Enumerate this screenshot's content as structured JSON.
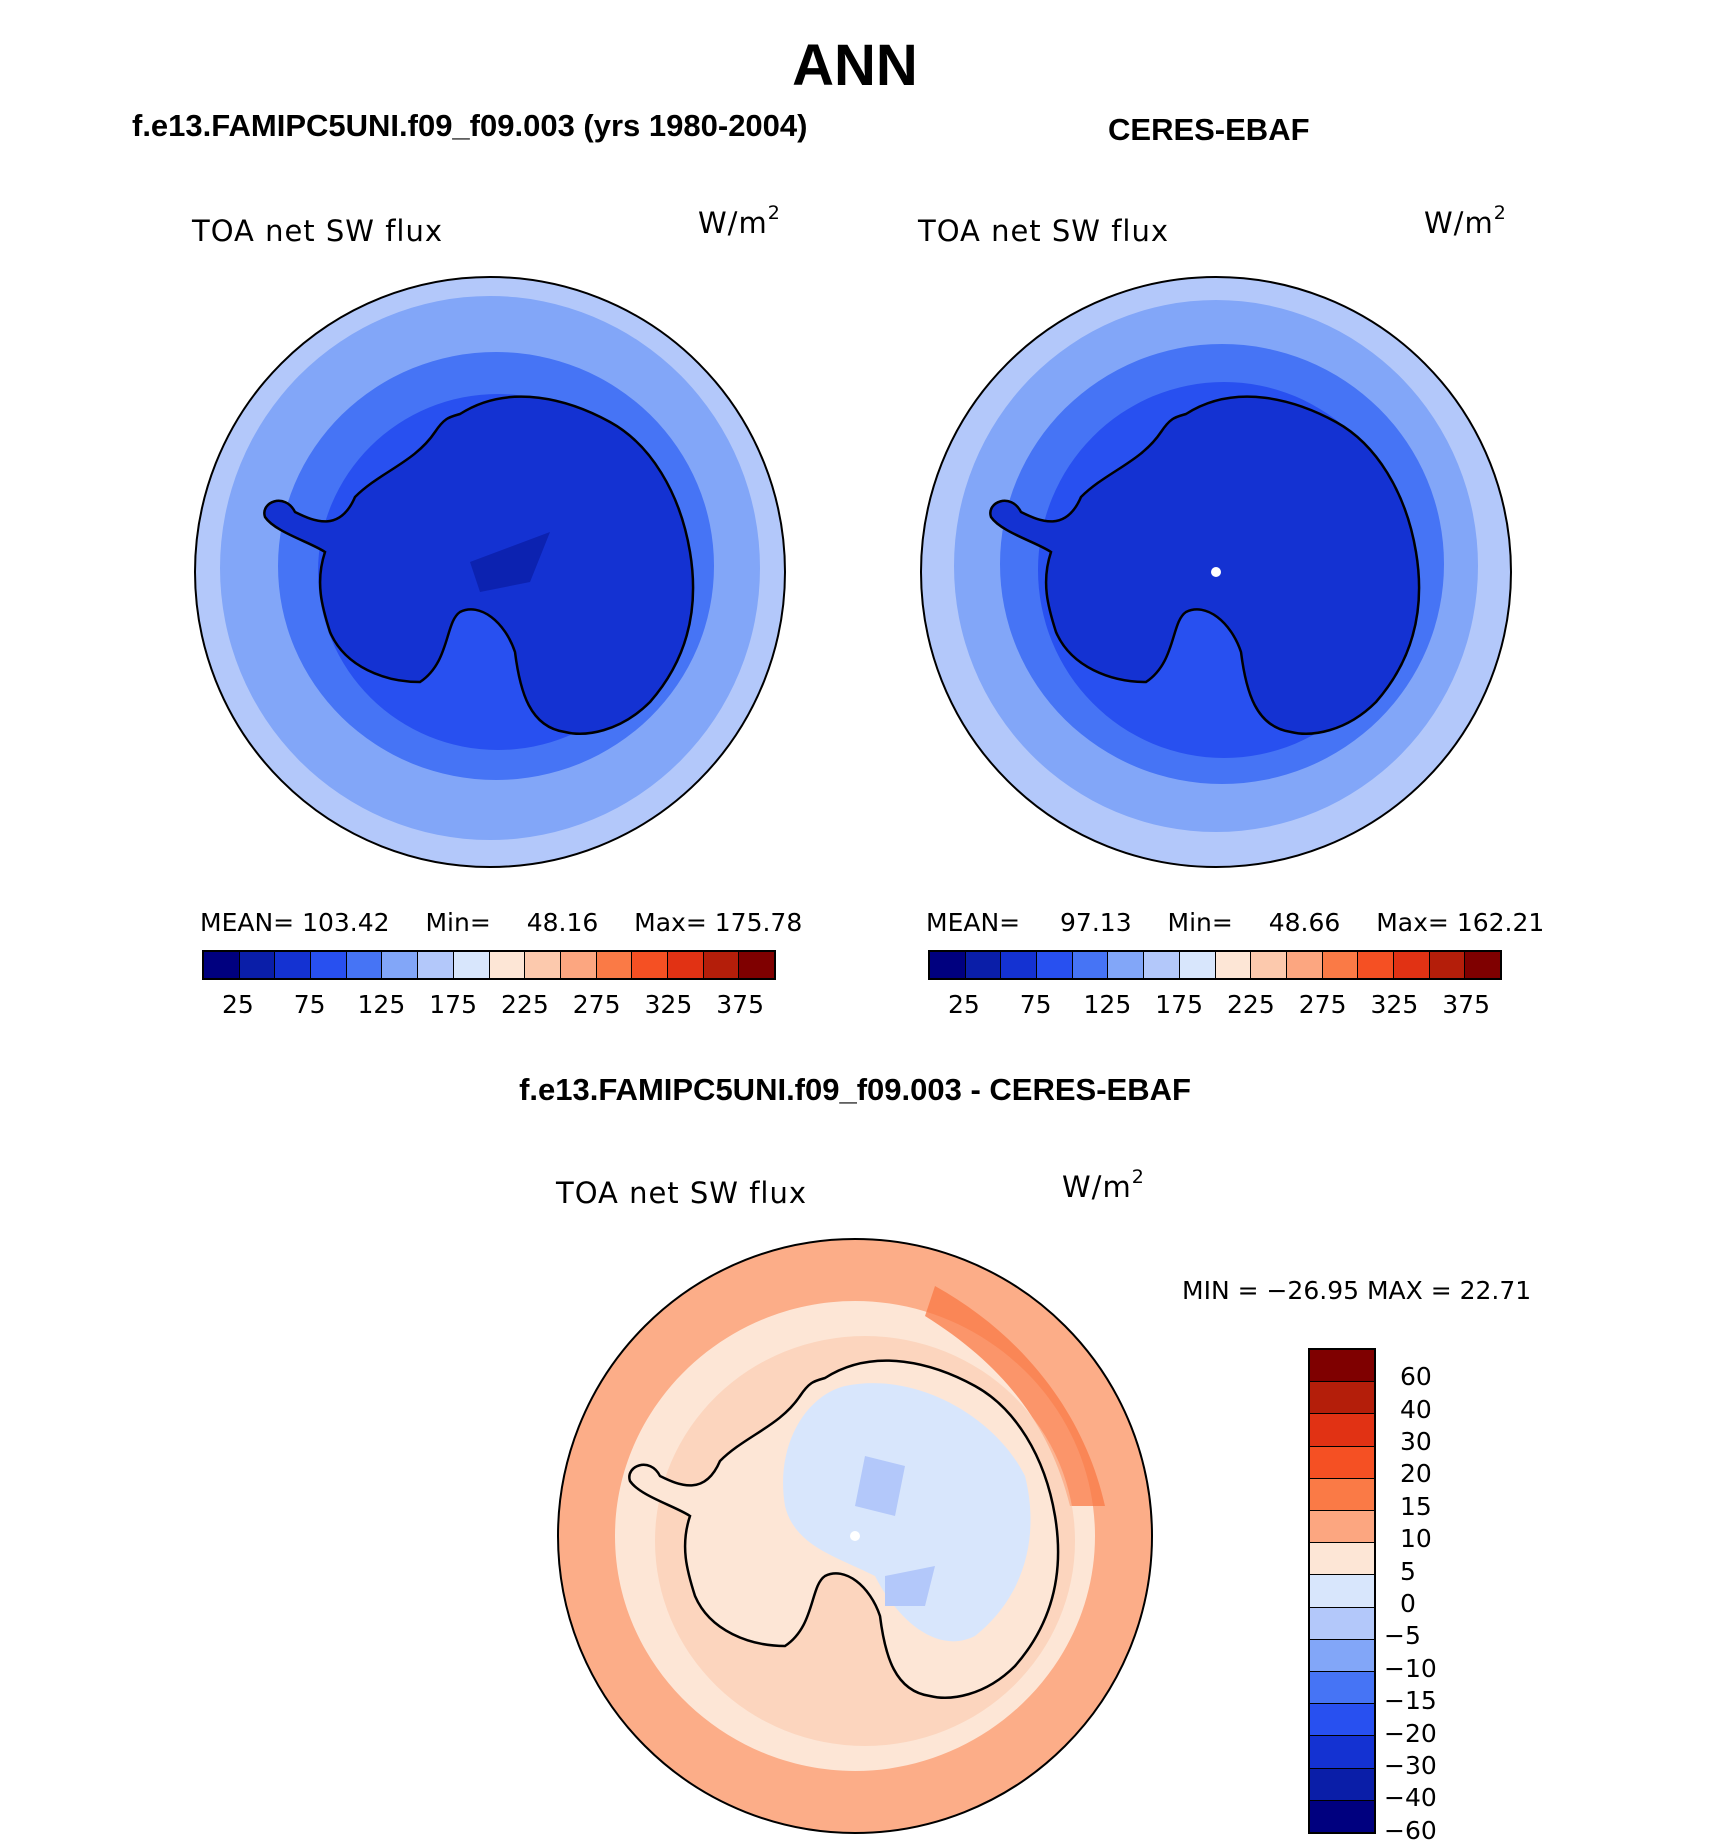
{
  "title": "ANN",
  "panels": {
    "model": {
      "case_title": "f.e13.FAMIPC5UNI.f09_f09.003 (yrs 1980-2004)",
      "variable_label": "TOA net SW flux",
      "units": "W/m",
      "units_exponent": "2",
      "stats": {
        "mean_label": "MEAN=",
        "mean": "103.42",
        "min_label": "Min=",
        "min": "48.16",
        "max_label": "Max=",
        "max": "175.78"
      },
      "colorbar_ticks": [
        "25",
        "75",
        "125",
        "175",
        "225",
        "275",
        "325",
        "375"
      ]
    },
    "obs": {
      "case_title": "CERES-EBAF",
      "variable_label": "TOA net SW flux",
      "units": "W/m",
      "units_exponent": "2",
      "stats": {
        "mean_label": "MEAN=",
        "mean": "97.13",
        "min_label": "Min=",
        "min": "48.66",
        "max_label": "Max=",
        "max": "162.21"
      },
      "colorbar_ticks": [
        "25",
        "75",
        "125",
        "175",
        "225",
        "275",
        "325",
        "375"
      ]
    },
    "diff": {
      "case_title": "f.e13.FAMIPC5UNI.f09_f09.003 - CERES-EBAF",
      "variable_label": "TOA net SW flux",
      "units": "W/m",
      "units_exponent": "2",
      "minmax_text": "MIN = −26.95 MAX =   22.71",
      "colorbar_ticks": [
        "60",
        "40",
        "30",
        "20",
        "15",
        "10",
        "5",
        "0",
        "−5",
        "−10",
        "−15",
        "−20",
        "−30",
        "−40",
        "−60"
      ]
    }
  },
  "colors": {
    "abs_palette": [
      "#00007f",
      "#0a1ea8",
      "#1432d2",
      "#2850f0",
      "#4674f5",
      "#82a6f8",
      "#b3c8fa",
      "#d8e6fc",
      "#fde6d6",
      "#fcc9ad",
      "#fca680",
      "#fa7a46",
      "#f55023",
      "#e13214",
      "#b41e0a",
      "#7f0000"
    ],
    "diff_palette": [
      "#7f0000",
      "#b41e0a",
      "#e13214",
      "#f55023",
      "#fa7a46",
      "#fca680",
      "#fde6d6",
      "#d8e6fc",
      "#b3c8fa",
      "#82a6f8",
      "#4674f5",
      "#2850f0",
      "#1432d2",
      "#0a1ea8",
      "#00007f"
    ]
  }
}
